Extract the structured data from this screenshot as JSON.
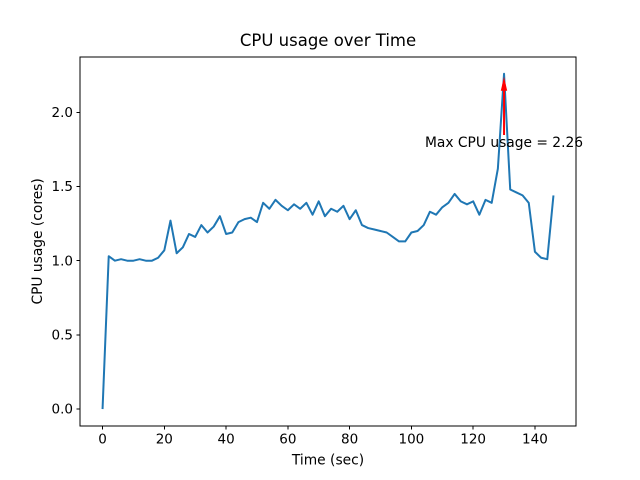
{
  "chart_data": {
    "type": "line",
    "title": "CPU usage over Time",
    "xlabel": "Time (sec)",
    "ylabel": "CPU usage (cores)",
    "x": [
      0,
      2,
      4,
      6,
      8,
      10,
      12,
      14,
      16,
      18,
      20,
      22,
      24,
      26,
      28,
      30,
      32,
      34,
      36,
      38,
      40,
      42,
      44,
      46,
      48,
      50,
      52,
      54,
      56,
      58,
      60,
      62,
      64,
      66,
      68,
      70,
      72,
      74,
      76,
      78,
      80,
      82,
      84,
      86,
      88,
      90,
      92,
      94,
      96,
      98,
      100,
      102,
      104,
      106,
      108,
      110,
      112,
      114,
      116,
      118,
      120,
      122,
      124,
      126,
      128,
      130,
      132,
      134,
      136,
      138,
      140,
      142,
      144,
      146
    ],
    "y": [
      0.0,
      1.03,
      1.0,
      1.01,
      1.0,
      1.0,
      1.01,
      1.0,
      1.0,
      1.02,
      1.07,
      1.27,
      1.05,
      1.09,
      1.18,
      1.16,
      1.24,
      1.19,
      1.23,
      1.3,
      1.18,
      1.19,
      1.26,
      1.28,
      1.29,
      1.26,
      1.39,
      1.35,
      1.41,
      1.37,
      1.34,
      1.38,
      1.35,
      1.39,
      1.31,
      1.4,
      1.3,
      1.35,
      1.33,
      1.37,
      1.28,
      1.34,
      1.24,
      1.22,
      1.21,
      1.2,
      1.19,
      1.16,
      1.13,
      1.13,
      1.19,
      1.2,
      1.24,
      1.33,
      1.31,
      1.36,
      1.39,
      1.45,
      1.4,
      1.38,
      1.4,
      1.31,
      1.41,
      1.39,
      1.62,
      2.26,
      1.48,
      1.46,
      1.44,
      1.39,
      1.06,
      1.02,
      1.01,
      1.44
    ],
    "series_name": "CPU usage",
    "line_color": "#1f77b4",
    "xlim": [
      -7.3,
      153.3
    ],
    "ylim": [
      -0.113,
      2.373
    ],
    "xticks": [
      0,
      20,
      40,
      60,
      80,
      100,
      120,
      140
    ],
    "xtick_labels": [
      "0",
      "20",
      "40",
      "60",
      "80",
      "100",
      "120",
      "140"
    ],
    "yticks": [
      0.0,
      0.5,
      1.0,
      1.5,
      2.0
    ],
    "ytick_labels": [
      "0.0",
      "0.5",
      "1.0",
      "1.5",
      "2.0"
    ],
    "grid": false,
    "legend": null,
    "max_value": 2.26,
    "annotation": {
      "text": "Max CPU usage = 2.26",
      "color": "#ff0000",
      "xy": [
        130,
        2.26
      ],
      "text_pos": [
        130,
        1.8
      ]
    }
  }
}
